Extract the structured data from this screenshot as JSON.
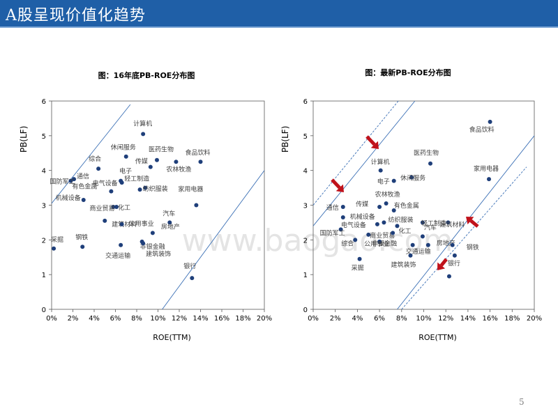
{
  "slide": {
    "title": "A股呈现价值化趋势",
    "page_number": "5",
    "watermark": "www.baogao.com"
  },
  "colors": {
    "header": "#1f5fa7",
    "point": "#1f3f7a",
    "line": "#3a6fb5",
    "arrow": "#c0121b"
  },
  "chart_data": [
    {
      "type": "scatter",
      "title": "图：16年底PB-ROE分布图",
      "xlabel": "ROE(TTM)",
      "ylabel": "PB(LF)",
      "xlim": [
        0,
        20
      ],
      "ylim": [
        0,
        6
      ],
      "xticks": [
        "0%",
        "2%",
        "4%",
        "6%",
        "8%",
        "10%",
        "12%",
        "14%",
        "16%",
        "18%",
        "20%"
      ],
      "yticks": [
        "0",
        "1",
        "2",
        "3",
        "4",
        "5",
        "6"
      ],
      "grid": false,
      "points": [
        {
          "label": "计算机",
          "x": 8.6,
          "y": 5.05
        },
        {
          "label": "休闲服务",
          "x": 7.0,
          "y": 4.4
        },
        {
          "label": "医药生物",
          "x": 9.9,
          "y": 4.3
        },
        {
          "label": "食品饮料",
          "x": 14.0,
          "y": 4.25
        },
        {
          "label": "传媒",
          "x": 9.3,
          "y": 4.1
        },
        {
          "label": "农林牧渔",
          "x": 11.7,
          "y": 4.25
        },
        {
          "label": "综合",
          "x": 4.4,
          "y": 4.05
        },
        {
          "label": "通信",
          "x": 2.1,
          "y": 3.75
        },
        {
          "label": "国防军工",
          "x": 1.8,
          "y": 3.7
        },
        {
          "label": "电子",
          "x": 6.5,
          "y": 3.7
        },
        {
          "label": "电气设备",
          "x": 6.6,
          "y": 3.65
        },
        {
          "label": "轻工制造",
          "x": 8.8,
          "y": 3.5
        },
        {
          "label": "纺织服装",
          "x": 8.3,
          "y": 3.45
        },
        {
          "label": "有色金属",
          "x": 5.6,
          "y": 3.4
        },
        {
          "label": "机械设备",
          "x": 3.0,
          "y": 3.15
        },
        {
          "label": "商业贸易",
          "x": 5.8,
          "y": 2.95
        },
        {
          "label": "化工",
          "x": 6.1,
          "y": 2.95
        },
        {
          "label": "家用电器",
          "x": 13.6,
          "y": 3.0
        },
        {
          "label": "汽车",
          "x": 11.1,
          "y": 2.5
        },
        {
          "label": "建筑材料",
          "x": 5.0,
          "y": 2.55
        },
        {
          "label": "公用事业",
          "x": 6.6,
          "y": 2.45
        },
        {
          "label": "房地产",
          "x": 9.5,
          "y": 2.2
        },
        {
          "label": "采掘",
          "x": 0.2,
          "y": 1.75
        },
        {
          "label": "钢铁",
          "x": 2.9,
          "y": 1.8
        },
        {
          "label": "非银金融",
          "x": 8.5,
          "y": 1.95
        },
        {
          "label": "交通运输",
          "x": 6.5,
          "y": 1.85
        },
        {
          "label": "建筑装饰",
          "x": 8.6,
          "y": 1.9
        },
        {
          "label": "银行",
          "x": 13.2,
          "y": 0.9
        }
      ]
    },
    {
      "type": "scatter",
      "title": "图：最新PB-ROE分布图",
      "xlabel": "ROE(TTM)",
      "ylabel": "PB(LF)",
      "xlim": [
        0,
        20
      ],
      "ylim": [
        0,
        6
      ],
      "xticks": [
        "0%",
        "2%",
        "4%",
        "6%",
        "8%",
        "10%",
        "12%",
        "14%",
        "16%",
        "18%",
        "20%"
      ],
      "yticks": [
        "0",
        "1",
        "2",
        "3",
        "4",
        "5",
        "6"
      ],
      "grid": false,
      "points": [
        {
          "label": "食品饮料",
          "x": 16.0,
          "y": 5.4
        },
        {
          "label": "医药生物",
          "x": 10.6,
          "y": 4.2
        },
        {
          "label": "计算机",
          "x": 6.1,
          "y": 4.0
        },
        {
          "label": "家用电器",
          "x": 15.9,
          "y": 3.75
        },
        {
          "label": "休闲服务",
          "x": 8.9,
          "y": 3.8
        },
        {
          "label": "电子",
          "x": 7.3,
          "y": 3.7
        },
        {
          "label": "农林牧渔",
          "x": 6.6,
          "y": 3.05
        },
        {
          "label": "传媒",
          "x": 6.0,
          "y": 2.95
        },
        {
          "label": "通信",
          "x": 2.7,
          "y": 2.95
        },
        {
          "label": "有色金属",
          "x": 7.3,
          "y": 2.85
        },
        {
          "label": "机械设备",
          "x": 2.7,
          "y": 2.65
        },
        {
          "label": "轻工制造",
          "x": 9.9,
          "y": 2.5
        },
        {
          "label": "建筑材料",
          "x": 12.2,
          "y": 2.5
        },
        {
          "label": "纺织服装",
          "x": 6.4,
          "y": 2.5
        },
        {
          "label": "电气设备",
          "x": 5.8,
          "y": 2.45
        },
        {
          "label": "国防军工",
          "x": 2.5,
          "y": 2.3
        },
        {
          "label": "化工",
          "x": 7.6,
          "y": 2.4
        },
        {
          "label": "汽车",
          "x": 9.9,
          "y": 2.1
        },
        {
          "label": "商业贸易",
          "x": 5.0,
          "y": 2.15
        },
        {
          "label": "综合",
          "x": 3.8,
          "y": 2.0
        },
        {
          "label": "非银金融",
          "x": 7.2,
          "y": 2.2
        },
        {
          "label": "钢铁",
          "x": 12.6,
          "y": 1.85
        },
        {
          "label": "房地产",
          "x": 10.4,
          "y": 1.85
        },
        {
          "label": "交通运输",
          "x": 9.0,
          "y": 1.85
        },
        {
          "label": "公用事业",
          "x": 6.0,
          "y": 1.95
        },
        {
          "label": "采掘",
          "x": 4.2,
          "y": 1.45
        },
        {
          "label": "建筑装饰",
          "x": 8.8,
          "y": 1.55
        },
        {
          "label": "银行",
          "x": 12.8,
          "y": 1.55
        },
        {
          "label": "银行2",
          "x": 12.3,
          "y": 0.95
        }
      ]
    }
  ]
}
